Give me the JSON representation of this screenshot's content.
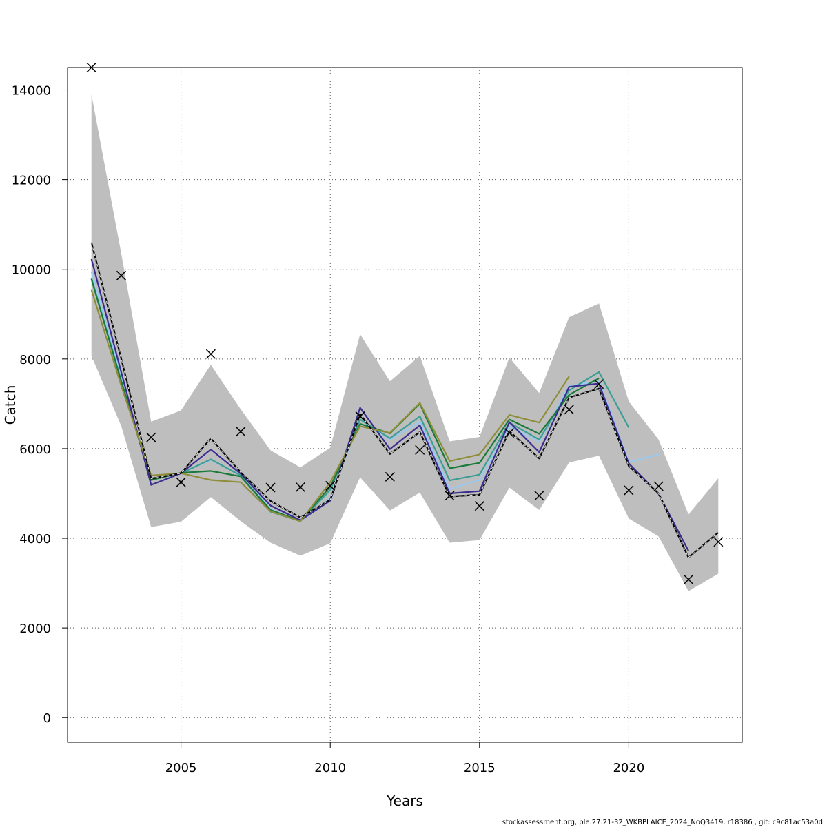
{
  "chart_data": {
    "type": "line",
    "xlabel": "Years",
    "ylabel": "Catch",
    "xlim": [
      2001.2,
      2023.8
    ],
    "ylim": [
      -550,
      14500
    ],
    "x_ticks": [
      2005,
      2010,
      2015,
      2020
    ],
    "y_ticks": [
      0,
      2000,
      4000,
      6000,
      8000,
      10000,
      12000,
      14000
    ],
    "grid": true,
    "footer": "stockassessment.org, ple.27.21-32_WKBPLAICE_2024_NoQ3419, r18386 , git: c9c81ac53a0d",
    "colors": {
      "band": "#bebebe",
      "base": "#000000",
      "peels": [
        "#9ac9f0",
        "#3a9e95",
        "#1a7a3a",
        "#3b2d8f",
        "#8e8e3a"
      ]
    },
    "confidence_band": {
      "x": [
        2002,
        2003,
        2004,
        2005,
        2006,
        2007,
        2008,
        2009,
        2010,
        2011,
        2012,
        2013,
        2014,
        2015,
        2016,
        2017,
        2018,
        2019,
        2020,
        2021,
        2022,
        2023
      ],
      "upper": [
        13900,
        10350,
        6600,
        6850,
        7870,
        6880,
        5960,
        5580,
        6020,
        8550,
        7500,
        8070,
        6160,
        6260,
        8030,
        7240,
        8930,
        9240,
        7050,
        6200,
        4530,
        5340
      ],
      "lower": [
        8070,
        6500,
        4250,
        4370,
        4920,
        4380,
        3900,
        3610,
        3890,
        5360,
        4620,
        5020,
        3900,
        3960,
        5130,
        4630,
        5690,
        5840,
        4440,
        4040,
        2820,
        3210
      ]
    },
    "base_estimate": {
      "x": [
        2002,
        2003,
        2004,
        2005,
        2006,
        2007,
        2008,
        2009,
        2010,
        2011,
        2012,
        2013,
        2014,
        2015,
        2016,
        2017,
        2018,
        2019,
        2020,
        2021,
        2022,
        2023
      ],
      "values": [
        10600,
        8000,
        5330,
        5450,
        6230,
        5470,
        4830,
        4460,
        4860,
        6770,
        5880,
        6370,
        4930,
        4970,
        6390,
        5780,
        7140,
        7340,
        5610,
        5000,
        3570,
        4130
      ]
    },
    "observed": {
      "x": [
        2002,
        2003,
        2004,
        2005,
        2006,
        2007,
        2008,
        2009,
        2010,
        2011,
        2012,
        2013,
        2014,
        2015,
        2016,
        2017,
        2018,
        2019,
        2020,
        2021,
        2022,
        2023
      ],
      "values": [
        14500,
        9860,
        6250,
        5250,
        8110,
        6380,
        5130,
        5140,
        5170,
        6720,
        5370,
        5970,
        4950,
        4720,
        6350,
        4950,
        6870,
        7440,
        5070,
        5160,
        3080,
        3920
      ]
    },
    "series": [
      {
        "x": [
          2002,
          2003,
          2004,
          2005,
          2006,
          2007,
          2008,
          2009,
          2010,
          2011,
          2012,
          2013,
          2014,
          2015,
          2016,
          2017,
          2018,
          2019,
          2020,
          2021
        ],
        "values": [
          9950,
          7600,
          5300,
          5450,
          5750,
          5400,
          4650,
          4380,
          4900,
          6650,
          6200,
          6600,
          5100,
          5300,
          6500,
          6150,
          7400,
          7500,
          5700,
          5870
        ]
      },
      {
        "x": [
          2002,
          2003,
          2004,
          2005,
          2006,
          2007,
          2008,
          2009,
          2010,
          2011,
          2012,
          2013,
          2014,
          2015,
          2016,
          2017,
          2018,
          2019,
          2020
        ],
        "values": [
          9800,
          7500,
          5310,
          5450,
          5760,
          5400,
          4590,
          4380,
          5080,
          6650,
          6230,
          6720,
          5290,
          5420,
          6580,
          6200,
          7300,
          7710,
          6470
        ]
      },
      {
        "x": [
          2002,
          2003,
          2004,
          2005,
          2006,
          2007,
          2008,
          2009,
          2010,
          2011,
          2012,
          2013,
          2014,
          2015,
          2016,
          2017,
          2018,
          2019
        ],
        "values": [
          9780,
          7500,
          5300,
          5460,
          5500,
          5380,
          4630,
          4390,
          5150,
          6550,
          6340,
          7000,
          5560,
          5680,
          6650,
          6330,
          7200,
          7570
        ]
      },
      {
        "x": [
          2002,
          2003,
          2004,
          2005,
          2006,
          2007,
          2008,
          2009,
          2010,
          2011,
          2012,
          2013,
          2014,
          2015,
          2016,
          2017,
          2018,
          2019,
          2020,
          2021,
          2022
        ],
        "values": [
          10230,
          7700,
          5190,
          5450,
          5980,
          5440,
          4730,
          4400,
          4840,
          6910,
          5990,
          6520,
          5000,
          5050,
          6590,
          5920,
          7380,
          7450,
          5670,
          4990,
          3720
        ]
      },
      {
        "x": [
          2002,
          2003,
          2004,
          2005,
          2006,
          2007,
          2008,
          2009,
          2010,
          2011,
          2012,
          2013,
          2014,
          2015,
          2016,
          2017,
          2018
        ],
        "values": [
          9540,
          7400,
          5400,
          5450,
          5300,
          5250,
          4600,
          4380,
          5250,
          6500,
          6350,
          7020,
          5720,
          5870,
          6750,
          6580,
          7610
        ]
      }
    ]
  }
}
